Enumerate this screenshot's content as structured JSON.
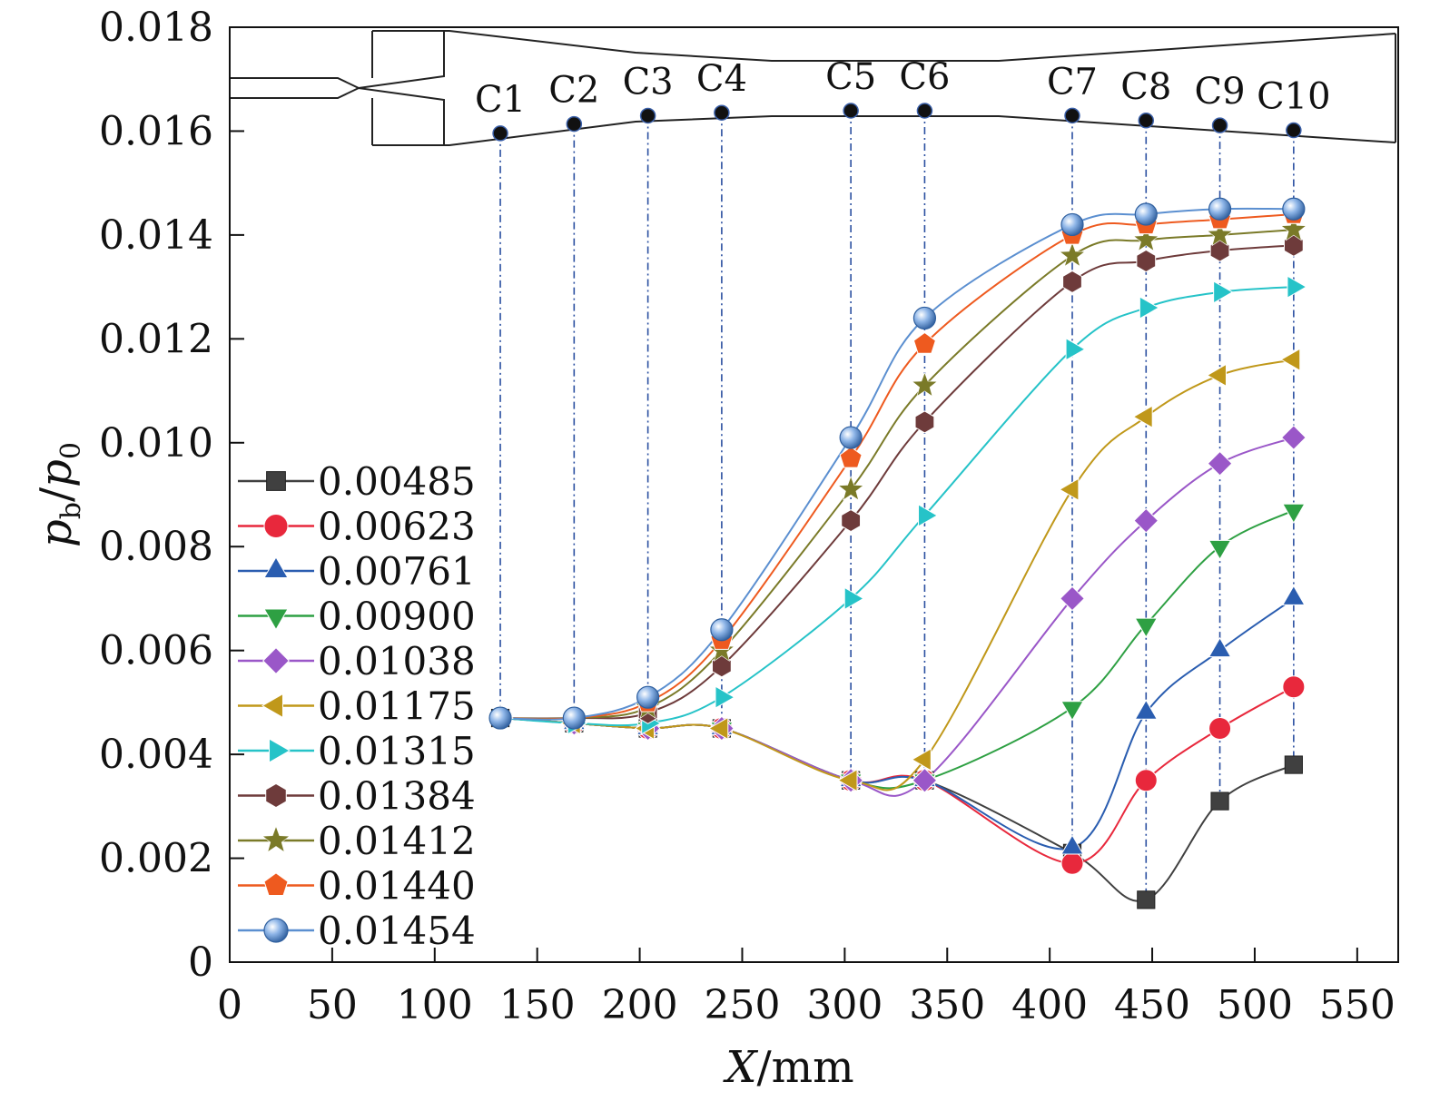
{
  "chart_data": {
    "type": "line",
    "xlabel": {
      "italic": "X",
      "rest": "/mm"
    },
    "ylabel": {
      "p1": "p",
      "s1": "b",
      "slash": "/",
      "p2": "p",
      "s2": "0"
    },
    "xlim": [
      0,
      570
    ],
    "ylim": [
      0,
      0.018
    ],
    "x_ticks": [
      "0",
      "50",
      "100",
      "150",
      "200",
      "250",
      "300",
      "350",
      "400",
      "450",
      "500",
      "550"
    ],
    "x_tick_values": [
      0,
      50,
      100,
      150,
      200,
      250,
      300,
      350,
      400,
      450,
      500,
      550
    ],
    "y_ticks": [
      "0",
      "0.002",
      "0.004",
      "0.006",
      "0.008",
      "0.010",
      "0.012",
      "0.014",
      "0.016",
      "0.018"
    ],
    "y_tick_values": [
      0,
      0.002,
      0.004,
      0.006,
      0.008,
      0.01,
      0.012,
      0.014,
      0.016,
      0.018
    ],
    "stations": [
      "C1",
      "C2",
      "C3",
      "C4",
      "C5",
      "C6",
      "C7",
      "C8",
      "C9",
      "C10"
    ],
    "x": [
      132,
      168,
      204,
      240,
      303,
      339,
      411,
      447,
      483,
      519
    ],
    "legend_position": "left",
    "series": [
      {
        "name": "0.00485",
        "color": "#404040",
        "marker": "square",
        "values": [
          0.0047,
          0.0046,
          0.0045,
          0.0045,
          0.0035,
          0.0035,
          0.0021,
          0.0012,
          0.0031,
          0.0038
        ]
      },
      {
        "name": "0.00623",
        "color": "#e8283c",
        "marker": "circle",
        "values": [
          0.0047,
          0.0046,
          0.0045,
          0.0045,
          0.0035,
          0.0035,
          0.0019,
          0.0035,
          0.0045,
          0.0053
        ]
      },
      {
        "name": "0.00761",
        "color": "#2a5db0",
        "marker": "triangle-up",
        "values": [
          0.0047,
          0.0046,
          0.0045,
          0.0045,
          0.0035,
          0.0035,
          0.0022,
          0.0048,
          0.006,
          0.007
        ]
      },
      {
        "name": "0.00900",
        "color": "#2ea043",
        "marker": "triangle-down",
        "values": [
          0.0047,
          0.0046,
          0.0045,
          0.0045,
          0.0035,
          0.0035,
          0.0049,
          0.0065,
          0.008,
          0.0087
        ]
      },
      {
        "name": "0.01038",
        "color": "#9a57c8",
        "marker": "diamond",
        "values": [
          0.0047,
          0.0046,
          0.0045,
          0.0045,
          0.0035,
          0.0035,
          0.007,
          0.0085,
          0.0096,
          0.0101
        ]
      },
      {
        "name": "0.01175",
        "color": "#c0981a",
        "marker": "triangle-left",
        "values": [
          0.0047,
          0.0046,
          0.0045,
          0.0045,
          0.0035,
          0.0039,
          0.0091,
          0.0105,
          0.0113,
          0.0116
        ]
      },
      {
        "name": "0.01315",
        "color": "#26c3c8",
        "marker": "triangle-right",
        "values": [
          0.0047,
          0.0046,
          0.0046,
          0.0051,
          0.007,
          0.0086,
          0.0118,
          0.0126,
          0.0129,
          0.013
        ]
      },
      {
        "name": "0.01384",
        "color": "#6e3b3b",
        "marker": "hexagon",
        "values": [
          0.0047,
          0.0047,
          0.0048,
          0.0057,
          0.0085,
          0.0104,
          0.0131,
          0.0135,
          0.0137,
          0.0138
        ]
      },
      {
        "name": "0.01412",
        "color": "#7a7a28",
        "marker": "star",
        "values": [
          0.0047,
          0.0047,
          0.0049,
          0.006,
          0.0091,
          0.0111,
          0.0136,
          0.0139,
          0.014,
          0.0141
        ]
      },
      {
        "name": "0.01440",
        "color": "#ee5a1f",
        "marker": "pentagon",
        "values": [
          0.0047,
          0.0047,
          0.005,
          0.0062,
          0.0097,
          0.0119,
          0.014,
          0.0142,
          0.0143,
          0.0144
        ]
      },
      {
        "name": "0.01454",
        "color": "#5b8fd0",
        "marker": "circle",
        "values": [
          0.0047,
          0.0047,
          0.0051,
          0.0064,
          0.0101,
          0.0124,
          0.0142,
          0.0144,
          0.0145,
          0.0145
        ]
      }
    ]
  }
}
